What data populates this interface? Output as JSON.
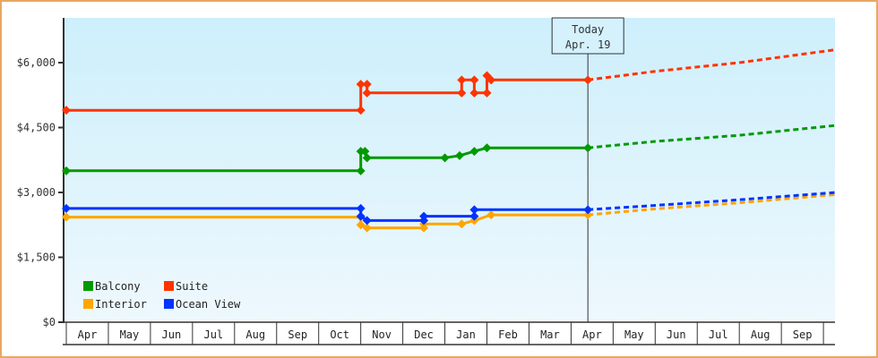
{
  "chart_data": {
    "type": "line",
    "title": "",
    "xlabel": "",
    "ylabel": "",
    "ylim": [
      0,
      7000
    ],
    "y_ticks": [
      {
        "value": 0,
        "label": "$0"
      },
      {
        "value": 1500,
        "label": "$1,500"
      },
      {
        "value": 3000,
        "label": "$3,000"
      },
      {
        "value": 4500,
        "label": "$4,500"
      },
      {
        "value": 6000,
        "label": "$6,000"
      }
    ],
    "x_ticks": [
      "Apr",
      "May",
      "Jun",
      "Jul",
      "Aug",
      "Sep",
      "Oct",
      "Nov",
      "Dec",
      "Jan",
      "Feb",
      "Mar",
      "Apr",
      "May",
      "Jun",
      "Jul",
      "Aug",
      "Sep"
    ],
    "grid": false,
    "legend_position": "bottom-left inside plot",
    "today_marker": {
      "line1": "Today",
      "line2": "Apr. 19",
      "month_index": 12.4
    },
    "series": [
      {
        "name": "Balcony",
        "color": "#009900",
        "historical": [
          [
            0,
            3500
          ],
          [
            7.0,
            3500
          ],
          [
            7.0,
            3950
          ],
          [
            7.1,
            3950
          ],
          [
            7.15,
            3800
          ],
          [
            8.5,
            3800
          ],
          [
            9.0,
            3800
          ],
          [
            9.35,
            3850
          ],
          [
            9.7,
            3950
          ],
          [
            10.0,
            4030
          ],
          [
            12.4,
            4030
          ]
        ],
        "forecast": [
          [
            12.4,
            4030
          ],
          [
            14,
            4180
          ],
          [
            16,
            4320
          ],
          [
            18.3,
            4550
          ]
        ]
      },
      {
        "name": "Suite",
        "color": "#ff3300",
        "historical": [
          [
            0,
            4900
          ],
          [
            7.0,
            4900
          ],
          [
            7.0,
            5500
          ],
          [
            7.15,
            5500
          ],
          [
            7.15,
            5300
          ],
          [
            8.5,
            5300
          ],
          [
            9.2,
            5300
          ],
          [
            9.4,
            5300
          ],
          [
            9.4,
            5600
          ],
          [
            9.7,
            5600
          ],
          [
            9.7,
            5300
          ],
          [
            10.0,
            5300
          ],
          [
            10.0,
            5700
          ],
          [
            10.1,
            5600
          ],
          [
            12.4,
            5600
          ]
        ],
        "forecast": [
          [
            12.4,
            5600
          ],
          [
            14,
            5800
          ],
          [
            16,
            6000
          ],
          [
            18.3,
            6300
          ]
        ]
      },
      {
        "name": "Interior",
        "color": "#ffa500",
        "historical": [
          [
            0,
            2430
          ],
          [
            7.0,
            2430
          ],
          [
            7.0,
            2250
          ],
          [
            7.15,
            2180
          ],
          [
            8.5,
            2180
          ],
          [
            8.5,
            2270
          ],
          [
            9.4,
            2270
          ],
          [
            9.7,
            2350
          ],
          [
            10.1,
            2480
          ],
          [
            12.4,
            2480
          ]
        ],
        "forecast": [
          [
            12.4,
            2480
          ],
          [
            14,
            2620
          ],
          [
            16,
            2760
          ],
          [
            18.3,
            2950
          ]
        ]
      },
      {
        "name": "Ocean View",
        "color": "#0033ff",
        "historical": [
          [
            0,
            2630
          ],
          [
            7.0,
            2630
          ],
          [
            7.0,
            2450
          ],
          [
            7.15,
            2350
          ],
          [
            8.5,
            2350
          ],
          [
            8.5,
            2450
          ],
          [
            9.4,
            2450
          ],
          [
            9.7,
            2450
          ],
          [
            9.7,
            2600
          ],
          [
            12.4,
            2600
          ]
        ],
        "forecast": [
          [
            12.4,
            2600
          ],
          [
            14,
            2700
          ],
          [
            16,
            2830
          ],
          [
            18.3,
            3000
          ]
        ]
      }
    ]
  },
  "legend": [
    {
      "label": "Balcony",
      "color": "#009900"
    },
    {
      "label": "Suite",
      "color": "#ff3300"
    },
    {
      "label": "Interior",
      "color": "#ffa500"
    },
    {
      "label": "Ocean View",
      "color": "#0033ff"
    }
  ],
  "today_box": {
    "line1": "Today",
    "line2": "Apr. 19"
  }
}
